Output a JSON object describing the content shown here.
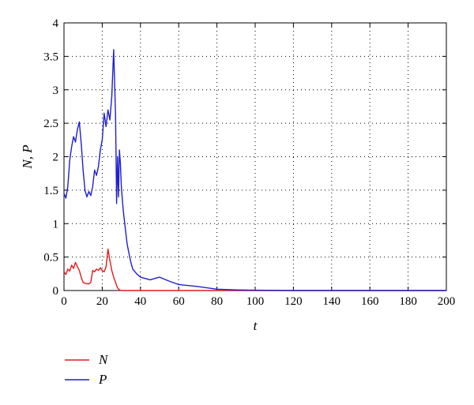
{
  "chart_data": {
    "type": "line",
    "xlabel": "t",
    "ylabel": "N, P",
    "xlim": [
      0,
      200
    ],
    "ylim": [
      0,
      4
    ],
    "xticks": [
      0,
      20,
      40,
      60,
      80,
      100,
      120,
      140,
      160,
      180,
      200
    ],
    "yticks": [
      0,
      0.5,
      1,
      1.5,
      2,
      2.5,
      3,
      3.5,
      4
    ],
    "xtick_labels": [
      "0",
      "20",
      "40",
      "60",
      "80",
      "100",
      "120",
      "140",
      "160",
      "180",
      "200"
    ],
    "ytick_labels": [
      "0",
      "0.5",
      "1",
      "1.5",
      "2",
      "2.5",
      "3",
      "3.5",
      "4"
    ],
    "grid": true,
    "legend_position": "bottom-left, below plot",
    "series": [
      {
        "name": "N",
        "color": "#e41a1c",
        "x": [
          0,
          1,
          2,
          3,
          4,
          5,
          6,
          7,
          8,
          9,
          10,
          11,
          12,
          13,
          14,
          15,
          16,
          17,
          18,
          19,
          20,
          21,
          22,
          23,
          24,
          25,
          26,
          27,
          28,
          29,
          30,
          35,
          40,
          50,
          60,
          80,
          100,
          120,
          140,
          160,
          180,
          200
        ],
        "values": [
          0.28,
          0.24,
          0.32,
          0.29,
          0.38,
          0.33,
          0.42,
          0.36,
          0.3,
          0.2,
          0.12,
          0.11,
          0.1,
          0.1,
          0.12,
          0.3,
          0.28,
          0.32,
          0.3,
          0.34,
          0.3,
          0.28,
          0.35,
          0.62,
          0.45,
          0.3,
          0.2,
          0.12,
          0.04,
          0.01,
          0,
          0,
          0,
          0,
          0,
          0,
          0,
          0,
          0,
          0,
          0,
          0
        ]
      },
      {
        "name": "P",
        "color": "#1f1fd1",
        "x": [
          0,
          0.5,
          1,
          2,
          3,
          4,
          5,
          6,
          7,
          8,
          9,
          10,
          11,
          12,
          13,
          14,
          15,
          16,
          17,
          18,
          19,
          20,
          21,
          22,
          23,
          24,
          25,
          26,
          27,
          27.5,
          28,
          28.5,
          29,
          29.5,
          30,
          31,
          32,
          33,
          34,
          35,
          36,
          38,
          40,
          45,
          50,
          55,
          60,
          70,
          80,
          90,
          100,
          120,
          140,
          160,
          180,
          200
        ],
        "values": [
          1.45,
          1.42,
          1.38,
          1.55,
          1.95,
          2.15,
          2.3,
          2.22,
          2.4,
          2.52,
          2.2,
          1.8,
          1.5,
          1.4,
          1.48,
          1.42,
          1.55,
          1.8,
          1.72,
          1.85,
          2.1,
          2.25,
          2.65,
          2.45,
          2.7,
          2.55,
          2.9,
          3.6,
          2.6,
          1.3,
          2.0,
          1.4,
          2.1,
          1.9,
          1.55,
          1.2,
          0.95,
          0.7,
          0.55,
          0.42,
          0.32,
          0.25,
          0.2,
          0.16,
          0.2,
          0.14,
          0.09,
          0.06,
          0.02,
          0.01,
          0.005,
          0,
          0,
          0,
          0,
          0
        ]
      }
    ]
  }
}
